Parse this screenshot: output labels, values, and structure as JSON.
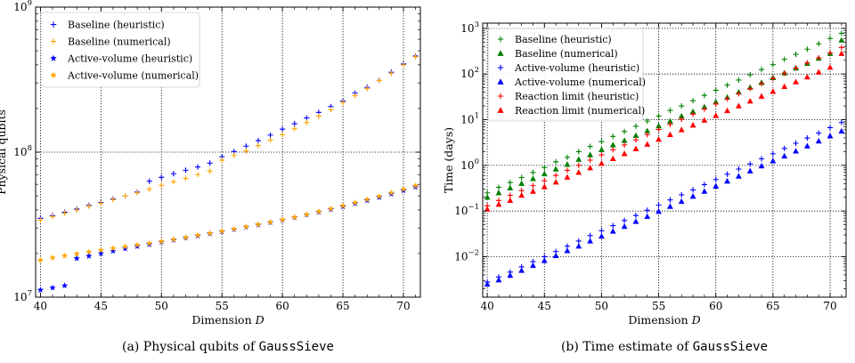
{
  "chart_data": [
    {
      "type": "scatter",
      "caption": {
        "prefix": "(a) Physical qubits of ",
        "code": "GaussSieve"
      },
      "xlabel": "Dimension",
      "xlabel_var": "D",
      "ylabel": "Physical qubits",
      "xlim": [
        39.6,
        71.4
      ],
      "ylim": [
        10000000,
        1000000000
      ],
      "yscale": "log",
      "grid": true,
      "legend_position": "top-left",
      "x_ticks": [
        40,
        45,
        50,
        55,
        60,
        65,
        70
      ],
      "y_ticks": [
        {
          "value": 10000000,
          "base": "10",
          "exp": "7"
        },
        {
          "value": 100000000,
          "base": "10",
          "exp": "8"
        },
        {
          "value": 1000000000,
          "base": "10",
          "exp": "9"
        }
      ],
      "series": [
        {
          "name": "Baseline (heuristic)",
          "marker": "plus",
          "color": "#0000ff",
          "x": [
            40,
            41,
            42,
            43,
            44,
            45,
            46,
            47,
            48,
            49,
            50,
            51,
            52,
            53,
            54,
            55,
            56,
            57,
            58,
            59,
            60,
            61,
            62,
            63,
            64,
            65,
            66,
            67,
            68,
            69,
            70,
            71
          ],
          "values": [
            35000000,
            36500000,
            38500000,
            40500000,
            43000000,
            45000000,
            47500000,
            50000000,
            53000000,
            63000000,
            67000000,
            71000000,
            75000000,
            79000000,
            84000000,
            93000000,
            101000000,
            110000000,
            120000000,
            131000000,
            144000000,
            157000000,
            172000000,
            188000000,
            206000000,
            225000000,
            255000000,
            280000000,
            312000000,
            356000000,
            405000000,
            460000000
          ]
        },
        {
          "name": "Baseline (numerical)",
          "marker": "plus",
          "color": "#ffa500",
          "x": [
            40,
            41,
            42,
            43,
            44,
            45,
            46,
            47,
            48,
            49,
            50,
            51,
            52,
            53,
            54,
            55,
            56,
            57,
            58,
            59,
            60,
            61,
            62,
            63,
            64,
            65,
            66,
            67,
            68,
            69,
            70,
            71
          ],
          "values": [
            34000000,
            36000000,
            38000000,
            40000000,
            42500000,
            44500000,
            47000000,
            50000000,
            52500000,
            55500000,
            59000000,
            62500000,
            66000000,
            70000000,
            74000000,
            88000000,
            95000000,
            102000000,
            111000000,
            121000000,
            132000000,
            145000000,
            160000000,
            177000000,
            196000000,
            220000000,
            245000000,
            275000000,
            312000000,
            350000000,
            400000000,
            455000000
          ]
        },
        {
          "name": "Active-volume (heuristic)",
          "marker": "star",
          "color": "#0000ff",
          "x": [
            40,
            41,
            42,
            43,
            44,
            45,
            46,
            47,
            48,
            49,
            50,
            51,
            52,
            53,
            54,
            55,
            56,
            57,
            58,
            59,
            60,
            61,
            62,
            63,
            64,
            65,
            66,
            67,
            68,
            69,
            70,
            71
          ],
          "values": [
            11200000,
            11600000,
            12000000,
            18500000,
            19200000,
            20000000,
            20800000,
            21600000,
            22400000,
            23100000,
            24000000,
            24800000,
            25600000,
            26500000,
            27400000,
            28300000,
            29300000,
            30400000,
            31500000,
            32700000,
            34000000,
            35400000,
            37000000,
            38600000,
            40300000,
            42100000,
            44200000,
            46400000,
            48800000,
            51500000,
            54400000,
            57500000
          ]
        },
        {
          "name": "Active-volume (numerical)",
          "marker": "star",
          "color": "#ffa500",
          "x": [
            40,
            41,
            42,
            43,
            44,
            45,
            46,
            47,
            48,
            49,
            50,
            51,
            52,
            53,
            54,
            55,
            56,
            57,
            58,
            59,
            60,
            61,
            62,
            63,
            64,
            65,
            66,
            67,
            68,
            69,
            70,
            71
          ],
          "values": [
            18000000,
            18700000,
            19300000,
            19900000,
            20500000,
            21100000,
            21700000,
            22300000,
            22900000,
            23500000,
            24200000,
            25000000,
            25800000,
            26700000,
            27600000,
            28500000,
            29500000,
            30600000,
            31700000,
            32900000,
            34200000,
            35600000,
            37200000,
            38900000,
            40700000,
            42600000,
            44800000,
            47100000,
            49600000,
            52400000,
            55400000,
            58600000
          ]
        }
      ]
    },
    {
      "type": "scatter",
      "caption": {
        "prefix": "(b) Time estimate of ",
        "code": "GaussSieve"
      },
      "xlabel": "Dimension",
      "xlabel_var": "D",
      "ylabel": "Time (days)",
      "xlim": [
        39.6,
        71.4
      ],
      "ylim": [
        0.0013,
        1300
      ],
      "yscale": "log",
      "grid": true,
      "legend_position": "top-left",
      "x_ticks": [
        40,
        45,
        50,
        55,
        60,
        65,
        70
      ],
      "y_ticks": [
        {
          "value": 0.01,
          "base": "10",
          "exp": "−2"
        },
        {
          "value": 0.1,
          "base": "10",
          "exp": "−1"
        },
        {
          "value": 1,
          "base": "10",
          "exp": "0"
        },
        {
          "value": 10,
          "base": "10",
          "exp": "1"
        },
        {
          "value": 100,
          "base": "10",
          "exp": "2"
        },
        {
          "value": 1000,
          "base": "10",
          "exp": "3"
        }
      ],
      "series": [
        {
          "name": "Baseline (heuristic)",
          "marker": "plus",
          "color": "#008000",
          "x": [
            40,
            41,
            42,
            43,
            44,
            45,
            46,
            47,
            48,
            49,
            50,
            51,
            52,
            53,
            54,
            55,
            56,
            57,
            58,
            59,
            60,
            61,
            62,
            63,
            64,
            65,
            66,
            67,
            68,
            69,
            70,
            71
          ],
          "values": [
            0.25,
            0.33,
            0.42,
            0.54,
            0.7,
            0.9,
            1.2,
            1.5,
            2.0,
            2.6,
            3.3,
            4.3,
            5.5,
            7.2,
            9.3,
            12,
            16,
            20,
            26,
            34,
            44,
            57,
            74,
            96,
            125,
            160,
            210,
            270,
            350,
            460,
            600,
            780
          ]
        },
        {
          "name": "Baseline (numerical)",
          "marker": "triangle",
          "color": "#008000",
          "x": [
            40,
            41,
            42,
            43,
            44,
            45,
            46,
            47,
            48,
            49,
            50,
            51,
            52,
            53,
            54,
            55,
            56,
            57,
            58,
            59,
            60,
            61,
            62,
            63,
            64,
            65,
            66,
            67,
            68,
            69,
            70,
            71
          ],
          "values": [
            0.2,
            0.25,
            0.32,
            0.4,
            0.51,
            0.65,
            0.83,
            1.05,
            1.35,
            1.7,
            2.2,
            2.8,
            3.5,
            4.5,
            5.7,
            7.3,
            9.3,
            12,
            15,
            19,
            24.5,
            31,
            40,
            51,
            65,
            83,
            105,
            135,
            170,
            220,
            280,
            550
          ]
        },
        {
          "name": "Active-volume (heuristic)",
          "marker": "plus",
          "color": "#0000ff",
          "x": [
            40,
            41,
            42,
            43,
            44,
            45,
            46,
            47,
            48,
            49,
            50,
            51,
            52,
            53,
            54,
            55,
            56,
            57,
            58,
            59,
            60,
            61,
            62,
            63,
            64,
            65,
            66,
            67,
            68,
            69,
            70,
            71
          ],
          "values": [
            0.0028,
            0.0036,
            0.0046,
            0.006,
            0.0078,
            0.01,
            0.013,
            0.017,
            0.022,
            0.029,
            0.037,
            0.048,
            0.062,
            0.08,
            0.104,
            0.135,
            0.175,
            0.227,
            0.29,
            0.38,
            0.49,
            0.64,
            0.83,
            1.07,
            1.39,
            1.8,
            2.35,
            3.05,
            3.95,
            5.1,
            6.7,
            8.7
          ]
        },
        {
          "name": "Active-volume (numerical)",
          "marker": "triangle",
          "color": "#0000ff",
          "x": [
            40,
            41,
            42,
            43,
            44,
            45,
            46,
            47,
            48,
            49,
            50,
            51,
            52,
            53,
            54,
            55,
            56,
            57,
            58,
            59,
            60,
            61,
            62,
            63,
            64,
            65,
            66,
            67,
            68,
            69,
            70,
            71
          ],
          "values": [
            0.0025,
            0.0031,
            0.0039,
            0.005,
            0.0064,
            0.0082,
            0.0105,
            0.0135,
            0.017,
            0.022,
            0.028,
            0.036,
            0.046,
            0.059,
            0.076,
            0.098,
            0.126,
            0.162,
            0.21,
            0.27,
            0.35,
            0.45,
            0.58,
            0.75,
            0.97,
            1.25,
            1.6,
            2.05,
            2.65,
            3.4,
            4.4,
            5.6
          ]
        },
        {
          "name": "Reaction limit (heuristic)",
          "marker": "plus",
          "color": "#ff0000",
          "x": [
            40,
            41,
            42,
            43,
            44,
            45,
            46,
            47,
            48,
            49,
            50,
            51,
            52,
            53,
            54,
            55,
            56,
            57,
            58,
            59,
            60,
            61,
            62,
            63,
            64,
            65,
            66,
            67,
            68,
            69,
            70,
            71
          ],
          "values": [
            0.13,
            0.17,
            0.22,
            0.28,
            0.36,
            0.46,
            0.6,
            0.78,
            1.0,
            1.3,
            1.7,
            2.2,
            2.8,
            3.6,
            4.7,
            6.1,
            7.9,
            10.2,
            13.2,
            17,
            22,
            28.5,
            37,
            48,
            62,
            80,
            104,
            135,
            175,
            225,
            290,
            380
          ]
        },
        {
          "name": "Reaction limit (numerical)",
          "marker": "triangle",
          "color": "#ff0000",
          "x": [
            40,
            41,
            42,
            43,
            44,
            45,
            46,
            47,
            48,
            49,
            50,
            51,
            52,
            53,
            54,
            55,
            56,
            57,
            58,
            59,
            60,
            61,
            62,
            63,
            64,
            65,
            66,
            67,
            68,
            69,
            70,
            71
          ],
          "values": [
            0.11,
            0.14,
            0.17,
            0.22,
            0.27,
            0.34,
            0.43,
            0.55,
            0.7,
            0.88,
            1.1,
            1.4,
            1.8,
            2.3,
            2.9,
            3.7,
            4.7,
            6,
            7.6,
            9.7,
            12.3,
            15.7,
            20,
            25.5,
            32.5,
            41.5,
            53,
            67,
            86,
            110,
            140,
            280
          ]
        }
      ]
    }
  ]
}
